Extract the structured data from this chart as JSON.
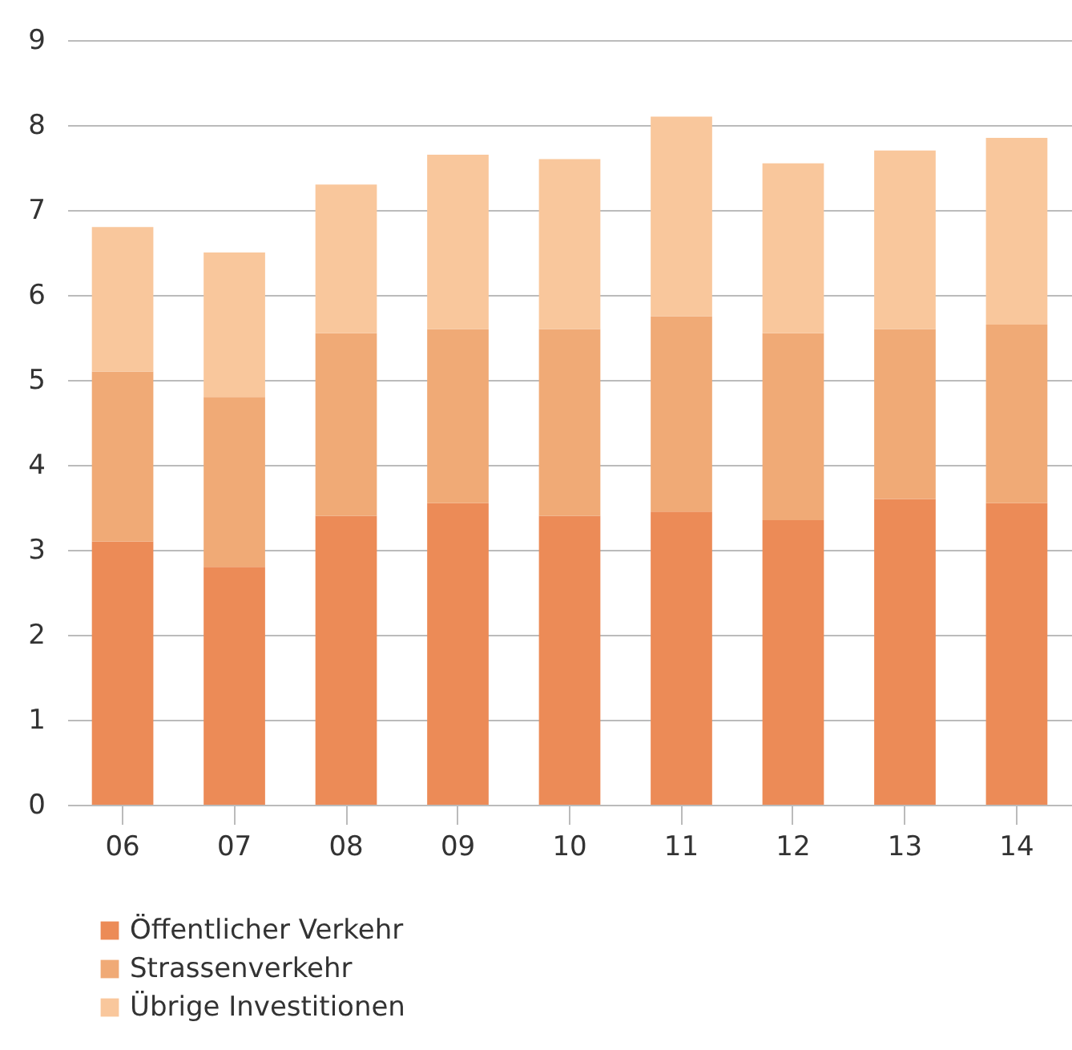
{
  "chart_data": {
    "type": "bar",
    "stacked": true,
    "categories": [
      "06",
      "07",
      "08",
      "09",
      "10",
      "11",
      "12",
      "13",
      "14"
    ],
    "series": [
      {
        "name": "Öffentlicher Verkehr",
        "color": "#ec8b57",
        "values": [
          3.1,
          2.8,
          3.4,
          3.55,
          3.4,
          3.45,
          3.35,
          3.6,
          3.55
        ]
      },
      {
        "name": "Strassenverkehr",
        "color": "#f0aa76",
        "values": [
          2.0,
          2.0,
          2.15,
          2.05,
          2.2,
          2.3,
          2.2,
          2.0,
          2.1
        ]
      },
      {
        "name": "Übrige Investitionen",
        "color": "#f9c79c",
        "values": [
          1.7,
          1.7,
          1.75,
          2.05,
          2.0,
          2.35,
          2.0,
          2.1,
          2.2
        ]
      }
    ],
    "ylim": [
      0,
      9
    ],
    "yticks": [
      0,
      1,
      2,
      3,
      4,
      5,
      6,
      7,
      8,
      9
    ],
    "grid": "y",
    "legend": "bottom left"
  }
}
